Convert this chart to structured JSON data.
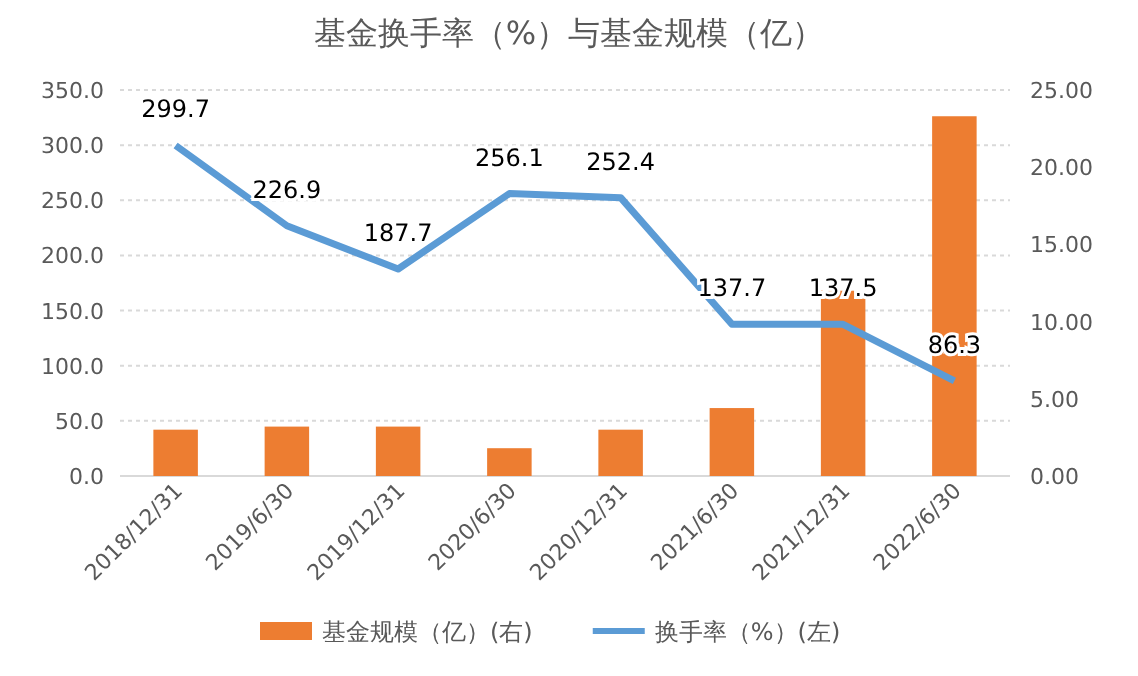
{
  "chart_data": {
    "type": "bar",
    "title": "基金换手率（%）与基金规模（亿）",
    "categories": [
      "2018/12/31",
      "2019/6/30",
      "2019/12/31",
      "2020/6/30",
      "2020/12/31",
      "2021/6/30",
      "2021/12/31",
      "2022/6/30"
    ],
    "series": [
      {
        "name": "基金规模（亿）(右)",
        "axis": "y2",
        "color": "#ed7d31",
        "values": [
          3.0,
          3.2,
          3.2,
          1.8,
          3.0,
          4.4,
          12.0,
          23.3
        ]
      },
      {
        "name": "换手率（%）(左)",
        "type": "line",
        "color": "#5b9bd5",
        "values": [
          299.7,
          226.9,
          187.7,
          256.1,
          252.4,
          137.7,
          137.5,
          86.3
        ],
        "value_labels": [
          "299.7",
          "226.9",
          "187.7",
          "256.1",
          "252.4",
          "137.7",
          "137.5",
          "86.3"
        ]
      }
    ],
    "ylim": [
      0,
      350
    ],
    "yticks": [
      {
        "value": 0,
        "label": "0.0"
      },
      {
        "value": 50,
        "label": "50.0"
      },
      {
        "value": 100,
        "label": "100.0"
      },
      {
        "value": 150,
        "label": "150.0"
      },
      {
        "value": 200,
        "label": "200.0"
      },
      {
        "value": 250,
        "label": "250.0"
      },
      {
        "value": 300,
        "label": "300.0"
      },
      {
        "value": 350,
        "label": "350.0"
      }
    ],
    "y2lim": [
      0,
      25
    ],
    "y2ticks": [
      {
        "value": 0,
        "label": "0.00"
      },
      {
        "value": 5,
        "label": "5.00"
      },
      {
        "value": 10,
        "label": "10.00"
      },
      {
        "value": 15,
        "label": "15.00"
      },
      {
        "value": 20,
        "label": "20.00"
      },
      {
        "value": 25,
        "label": "25.00"
      }
    ],
    "grid": "y",
    "legend": "bottom",
    "marker": "none",
    "line_style": "solid"
  }
}
